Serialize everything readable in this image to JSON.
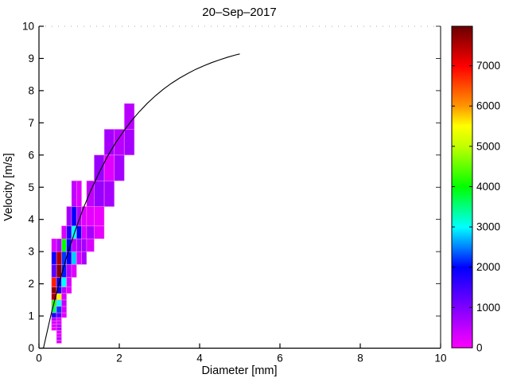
{
  "title": "20–Sep–2017",
  "chart_data": {
    "type": "heatmap",
    "title": "20–Sep–2017",
    "xlabel": "Diameter [mm]",
    "ylabel": "Velocity [m/s]",
    "xlim": [
      0,
      10
    ],
    "ylim": [
      0,
      10
    ],
    "xticks": [
      0,
      2,
      4,
      6,
      8,
      10
    ],
    "yticks": [
      0,
      1,
      2,
      3,
      4,
      5,
      6,
      7,
      8,
      9,
      10
    ],
    "grid": "off",
    "colorbar": {
      "position": "right",
      "min": 0,
      "max": 7980,
      "ticks": [
        0,
        1000,
        2000,
        3000,
        4000,
        5000,
        6000,
        7000
      ],
      "gradient_stops": [
        [
          0.0,
          "#FF00FF"
        ],
        [
          0.125,
          "#7F00FF"
        ],
        [
          0.25,
          "#0000FF"
        ],
        [
          0.375,
          "#00FFFF"
        ],
        [
          0.5,
          "#00FF00"
        ],
        [
          0.625,
          "#BFFF00"
        ],
        [
          0.69,
          "#FFFF00"
        ],
        [
          0.75,
          "#FF9900"
        ],
        [
          0.875,
          "#FF0000"
        ],
        [
          1.0,
          "#6B0000"
        ]
      ]
    },
    "cell_edge_color": "rgba(255,140,255,0.55)",
    "cells": [
      {
        "d": [
          0.312,
          0.437
        ],
        "v": [
          0.55,
          0.65
        ],
        "value": 200
      },
      {
        "d": [
          0.312,
          0.437
        ],
        "v": [
          0.65,
          0.75
        ],
        "value": 250
      },
      {
        "d": [
          0.312,
          0.437
        ],
        "v": [
          0.75,
          0.85
        ],
        "value": 300
      },
      {
        "d": [
          0.312,
          0.437
        ],
        "v": [
          0.85,
          0.95
        ],
        "value": 700
      },
      {
        "d": [
          0.312,
          0.437
        ],
        "v": [
          0.95,
          1.1
        ],
        "value": 1800
      },
      {
        "d": [
          0.312,
          0.437
        ],
        "v": [
          1.1,
          1.3
        ],
        "value": 3600
      },
      {
        "d": [
          0.312,
          0.437
        ],
        "v": [
          1.3,
          1.5
        ],
        "value": 4200
      },
      {
        "d": [
          0.312,
          0.437
        ],
        "v": [
          1.5,
          1.7
        ],
        "value": 7600
      },
      {
        "d": [
          0.312,
          0.437
        ],
        "v": [
          1.7,
          1.9
        ],
        "value": 7800
      },
      {
        "d": [
          0.312,
          0.437
        ],
        "v": [
          1.9,
          2.2
        ],
        "value": 6800
      },
      {
        "d": [
          0.312,
          0.437
        ],
        "v": [
          2.2,
          2.6
        ],
        "value": 1300
      },
      {
        "d": [
          0.312,
          0.437
        ],
        "v": [
          2.6,
          3.0
        ],
        "value": 1900
      },
      {
        "d": [
          0.312,
          0.437
        ],
        "v": [
          3.0,
          3.4
        ],
        "value": 300
      },
      {
        "d": [
          0.437,
          0.562
        ],
        "v": [
          0.15,
          0.25
        ],
        "value": 250
      },
      {
        "d": [
          0.437,
          0.562
        ],
        "v": [
          0.25,
          0.35
        ],
        "value": 550
      },
      {
        "d": [
          0.437,
          0.562
        ],
        "v": [
          0.35,
          0.45
        ],
        "value": 300
      },
      {
        "d": [
          0.437,
          0.562
        ],
        "v": [
          0.45,
          0.55
        ],
        "value": 250
      },
      {
        "d": [
          0.437,
          0.562
        ],
        "v": [
          0.55,
          0.65
        ],
        "value": 650
      },
      {
        "d": [
          0.437,
          0.562
        ],
        "v": [
          0.65,
          0.75
        ],
        "value": 550
      },
      {
        "d": [
          0.437,
          0.562
        ],
        "v": [
          0.75,
          0.85
        ],
        "value": 350
      },
      {
        "d": [
          0.437,
          0.562
        ],
        "v": [
          0.85,
          0.95
        ],
        "value": 300
      },
      {
        "d": [
          0.437,
          0.562
        ],
        "v": [
          0.95,
          1.1
        ],
        "value": 1400
      },
      {
        "d": [
          0.437,
          0.562
        ],
        "v": [
          1.1,
          1.3
        ],
        "value": 2200
      },
      {
        "d": [
          0.437,
          0.562
        ],
        "v": [
          1.3,
          1.5
        ],
        "value": 3000
      },
      {
        "d": [
          0.437,
          0.562
        ],
        "v": [
          1.5,
          1.7
        ],
        "value": 5400
      },
      {
        "d": [
          0.437,
          0.562
        ],
        "v": [
          1.7,
          1.9
        ],
        "value": 2000
      },
      {
        "d": [
          0.437,
          0.562
        ],
        "v": [
          1.9,
          2.2
        ],
        "value": 2000
      },
      {
        "d": [
          0.437,
          0.562
        ],
        "v": [
          2.2,
          2.6
        ],
        "value": 7800
      },
      {
        "d": [
          0.437,
          0.562
        ],
        "v": [
          2.6,
          3.0
        ],
        "value": 7500
      },
      {
        "d": [
          0.437,
          0.562
        ],
        "v": [
          3.0,
          3.4
        ],
        "value": 600
      },
      {
        "d": [
          0.562,
          0.687
        ],
        "v": [
          0.95,
          1.1
        ],
        "value": 250
      },
      {
        "d": [
          0.562,
          0.687
        ],
        "v": [
          1.1,
          1.3
        ],
        "value": 350
      },
      {
        "d": [
          0.562,
          0.687
        ],
        "v": [
          1.3,
          1.5
        ],
        "value": 500
      },
      {
        "d": [
          0.562,
          0.687
        ],
        "v": [
          1.5,
          1.7
        ],
        "value": 300
      },
      {
        "d": [
          0.562,
          0.687
        ],
        "v": [
          1.7,
          1.9
        ],
        "value": 550
      },
      {
        "d": [
          0.562,
          0.687
        ],
        "v": [
          1.9,
          2.2
        ],
        "value": 3000
      },
      {
        "d": [
          0.562,
          0.687
        ],
        "v": [
          2.2,
          2.6
        ],
        "value": 2100
      },
      {
        "d": [
          0.562,
          0.687
        ],
        "v": [
          2.6,
          3.0
        ],
        "value": 2200
      },
      {
        "d": [
          0.562,
          0.687
        ],
        "v": [
          3.0,
          3.4
        ],
        "value": 4000
      },
      {
        "d": [
          0.562,
          0.687
        ],
        "v": [
          3.4,
          3.8
        ],
        "value": 300
      },
      {
        "d": [
          0.687,
          0.812
        ],
        "v": [
          1.7,
          1.9
        ],
        "value": 200
      },
      {
        "d": [
          0.687,
          0.812
        ],
        "v": [
          1.9,
          2.2
        ],
        "value": 300
      },
      {
        "d": [
          0.687,
          0.812
        ],
        "v": [
          2.2,
          2.6
        ],
        "value": 600
      },
      {
        "d": [
          0.687,
          0.812
        ],
        "v": [
          2.6,
          3.0
        ],
        "value": 2000
      },
      {
        "d": [
          0.687,
          0.812
        ],
        "v": [
          3.0,
          3.4
        ],
        "value": 2000
      },
      {
        "d": [
          0.687,
          0.812
        ],
        "v": [
          3.4,
          3.8
        ],
        "value": 1800
      },
      {
        "d": [
          0.687,
          0.812
        ],
        "v": [
          3.8,
          4.4
        ],
        "value": 700
      },
      {
        "d": [
          0.812,
          0.937
        ],
        "v": [
          2.2,
          2.6
        ],
        "value": 250
      },
      {
        "d": [
          0.812,
          0.937
        ],
        "v": [
          2.6,
          3.0
        ],
        "value": 2800
      },
      {
        "d": [
          0.812,
          0.937
        ],
        "v": [
          3.0,
          3.4
        ],
        "value": 500
      },
      {
        "d": [
          0.812,
          0.937
        ],
        "v": [
          3.4,
          3.8
        ],
        "value": 3000
      },
      {
        "d": [
          0.812,
          0.937
        ],
        "v": [
          3.8,
          4.4
        ],
        "value": 2000
      },
      {
        "d": [
          0.812,
          0.937
        ],
        "v": [
          4.4,
          5.2
        ],
        "value": 500
      },
      {
        "d": [
          0.937,
          1.062
        ],
        "v": [
          2.6,
          3.0
        ],
        "value": 300
      },
      {
        "d": [
          0.937,
          1.062
        ],
        "v": [
          3.0,
          3.4
        ],
        "value": 700
      },
      {
        "d": [
          0.937,
          1.062
        ],
        "v": [
          3.4,
          3.8
        ],
        "value": 2000
      },
      {
        "d": [
          0.937,
          1.062
        ],
        "v": [
          3.8,
          4.4
        ],
        "value": 600
      },
      {
        "d": [
          0.937,
          1.062
        ],
        "v": [
          4.4,
          5.2
        ],
        "value": 250
      },
      {
        "d": [
          1.062,
          1.187
        ],
        "v": [
          2.6,
          3.0
        ],
        "value": 700
      },
      {
        "d": [
          1.062,
          1.187
        ],
        "v": [
          3.0,
          3.4
        ],
        "value": 700
      },
      {
        "d": [
          1.062,
          1.187
        ],
        "v": [
          3.4,
          3.8
        ],
        "value": 300
      },
      {
        "d": [
          1.062,
          1.187
        ],
        "v": [
          3.8,
          4.4
        ],
        "value": 250
      },
      {
        "d": [
          1.187,
          1.375
        ],
        "v": [
          3.0,
          3.4
        ],
        "value": 300
      },
      {
        "d": [
          1.187,
          1.375
        ],
        "v": [
          3.4,
          3.8
        ],
        "value": 700
      },
      {
        "d": [
          1.187,
          1.375
        ],
        "v": [
          3.8,
          4.4
        ],
        "value": 200
      },
      {
        "d": [
          1.187,
          1.375
        ],
        "v": [
          4.4,
          5.2
        ],
        "value": 500
      },
      {
        "d": [
          1.375,
          1.625
        ],
        "v": [
          3.4,
          3.8
        ],
        "value": 200
      },
      {
        "d": [
          1.375,
          1.625
        ],
        "v": [
          3.8,
          4.4
        ],
        "value": 150
      },
      {
        "d": [
          1.375,
          1.625
        ],
        "v": [
          4.4,
          5.2
        ],
        "value": 800
      },
      {
        "d": [
          1.375,
          1.625
        ],
        "v": [
          5.2,
          6.0
        ],
        "value": 800
      },
      {
        "d": [
          1.625,
          1.875
        ],
        "v": [
          4.4,
          5.2
        ],
        "value": 700
      },
      {
        "d": [
          1.625,
          1.875
        ],
        "v": [
          5.2,
          6.0
        ],
        "value": 250
      },
      {
        "d": [
          1.625,
          1.875
        ],
        "v": [
          6.0,
          6.8
        ],
        "value": 700
      },
      {
        "d": [
          1.875,
          2.125
        ],
        "v": [
          5.2,
          6.0
        ],
        "value": 700
      },
      {
        "d": [
          1.875,
          2.125
        ],
        "v": [
          6.0,
          6.8
        ],
        "value": 550
      },
      {
        "d": [
          2.125,
          2.375
        ],
        "v": [
          6.0,
          6.8
        ],
        "value": 700
      },
      {
        "d": [
          2.125,
          2.375
        ],
        "v": [
          6.8,
          7.6
        ],
        "value": 550
      }
    ],
    "curve": {
      "name": "terminal-fall-speed-curve",
      "color": "#000000",
      "points": [
        [
          0.11,
          0.0
        ],
        [
          0.3,
          1.05
        ],
        [
          0.5,
          2.02
        ],
        [
          0.7,
          2.88
        ],
        [
          0.9,
          3.65
        ],
        [
          1.1,
          4.33
        ],
        [
          1.3,
          4.93
        ],
        [
          1.5,
          5.46
        ],
        [
          1.7,
          5.94
        ],
        [
          1.9,
          6.36
        ],
        [
          2.1,
          6.73
        ],
        [
          2.3,
          7.06
        ],
        [
          2.5,
          7.35
        ],
        [
          2.7,
          7.61
        ],
        [
          2.9,
          7.84
        ],
        [
          3.1,
          8.05
        ],
        [
          3.3,
          8.23
        ],
        [
          3.5,
          8.39
        ],
        [
          3.7,
          8.53
        ],
        [
          3.9,
          8.66
        ],
        [
          4.1,
          8.77
        ],
        [
          4.3,
          8.87
        ],
        [
          4.5,
          8.96
        ],
        [
          4.7,
          9.04
        ],
        [
          4.9,
          9.11
        ],
        [
          5.0,
          9.14
        ]
      ]
    }
  }
}
